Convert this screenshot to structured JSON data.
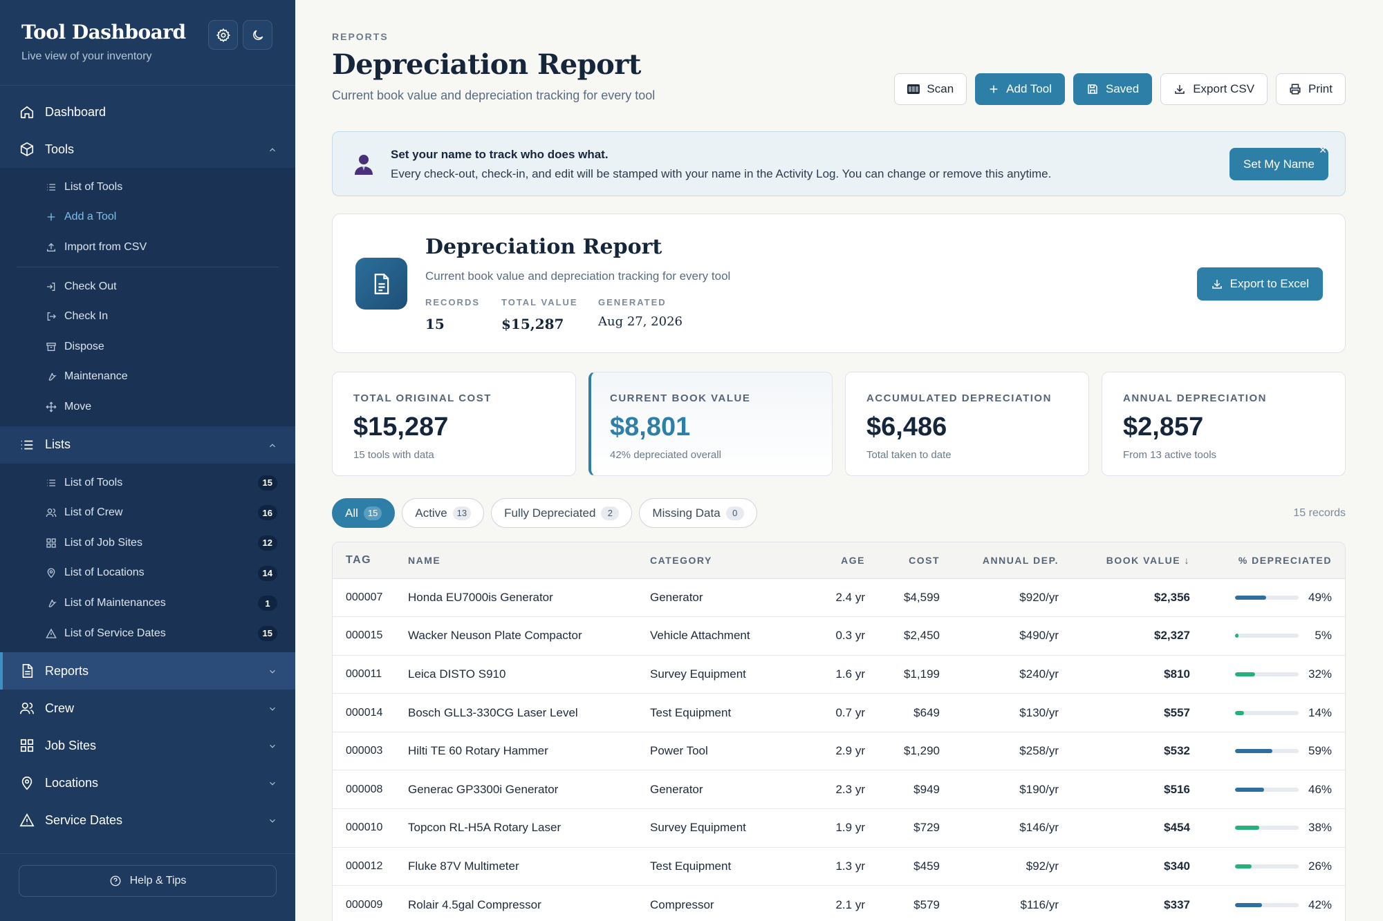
{
  "sidebar": {
    "title": "Tool Dashboard",
    "subtitle": "Live view of your inventory",
    "nav": {
      "dashboard": "Dashboard",
      "tools": "Tools",
      "lists": "Lists",
      "reports": "Reports",
      "crew": "Crew",
      "job_sites": "Job Sites",
      "locations": "Locations",
      "service_dates": "Service Dates"
    },
    "tools_items": [
      {
        "label": "List of Tools",
        "icon": "list-icon"
      },
      {
        "label": "Add a Tool",
        "icon": "plus-icon"
      },
      {
        "label": "Import from CSV",
        "icon": "upload-icon"
      }
    ],
    "tools_actions": [
      {
        "label": "Check Out",
        "icon": "check-out-icon"
      },
      {
        "label": "Check In",
        "icon": "check-in-icon"
      },
      {
        "label": "Dispose",
        "icon": "archive-icon"
      },
      {
        "label": "Maintenance",
        "icon": "wrench-icon"
      },
      {
        "label": "Move",
        "icon": "move-icon"
      }
    ],
    "lists_items": [
      {
        "label": "List of Tools",
        "count": "15",
        "icon": "list-icon"
      },
      {
        "label": "List of Crew",
        "count": "16",
        "icon": "users-icon"
      },
      {
        "label": "List of Job Sites",
        "count": "12",
        "icon": "grid-icon"
      },
      {
        "label": "List of Locations",
        "count": "14",
        "icon": "pin-icon"
      },
      {
        "label": "List of Maintenances",
        "count": "1",
        "icon": "wrench-icon"
      },
      {
        "label": "List of Service Dates",
        "count": "15",
        "icon": "warning-icon"
      }
    ],
    "help": "Help & Tips"
  },
  "header": {
    "breadcrumb": "REPORTS",
    "title": "Depreciation Report",
    "subtitle": "Current book value and depreciation tracking for every tool",
    "toolbar": {
      "scan": "Scan",
      "add_tool": "Add Tool",
      "saved": "Saved",
      "export_csv": "Export CSV",
      "print": "Print"
    }
  },
  "banner": {
    "title": "Set your name to track who does what.",
    "text": "Every check-out, check-in, and edit will be stamped with your name in the Activity Log. You can change or remove this anytime.",
    "button": "Set My Name",
    "close": "✕"
  },
  "report_card": {
    "title": "Depreciation Report",
    "subtitle": "Current book value and depreciation tracking for every tool",
    "records_label": "RECORDS",
    "records_value": "15",
    "total_label": "TOTAL VALUE",
    "total_value": "$15,287",
    "generated_label": "GENERATED",
    "generated_value": "Aug 27, 2026",
    "export_button": "Export to Excel"
  },
  "stats": [
    {
      "label": "TOTAL ORIGINAL COST",
      "value": "$15,287",
      "sub": "15 tools with data"
    },
    {
      "label": "CURRENT BOOK VALUE",
      "value": "$8,801",
      "sub": "42% depreciated overall"
    },
    {
      "label": "ACCUMULATED DEPRECIATION",
      "value": "$6,486",
      "sub": "Total taken to date"
    },
    {
      "label": "ANNUAL DEPRECIATION",
      "value": "$2,857",
      "sub": "From 13 active tools"
    }
  ],
  "filters": [
    {
      "label": "All",
      "count": "15"
    },
    {
      "label": "Active",
      "count": "13"
    },
    {
      "label": "Fully Depreciated",
      "count": "2"
    },
    {
      "label": "Missing Data",
      "count": "0"
    }
  ],
  "record_count": "15 records",
  "table": {
    "columns": [
      "TAG",
      "NAME",
      "CATEGORY",
      "AGE",
      "COST",
      "ANNUAL DEP.",
      "BOOK VALUE ↓",
      "% DEPRECIATED"
    ],
    "rows": [
      {
        "tag": "000007",
        "name": "Honda EU7000is Generator",
        "category": "Generator",
        "age": "2.4 yr",
        "cost": "$4,599",
        "annual": "$920/yr",
        "book": "$2,356",
        "pct": "49%",
        "pct_value": 49
      },
      {
        "tag": "000015",
        "name": "Wacker Neuson Plate Compactor",
        "category": "Vehicle Attachment",
        "age": "0.3 yr",
        "cost": "$2,450",
        "annual": "$490/yr",
        "book": "$2,327",
        "pct": "5%",
        "pct_value": 5
      },
      {
        "tag": "000011",
        "name": "Leica DISTO S910",
        "category": "Survey Equipment",
        "age": "1.6 yr",
        "cost": "$1,199",
        "annual": "$240/yr",
        "book": "$810",
        "pct": "32%",
        "pct_value": 32
      },
      {
        "tag": "000014",
        "name": "Bosch GLL3-330CG Laser Level",
        "category": "Test Equipment",
        "age": "0.7 yr",
        "cost": "$649",
        "annual": "$130/yr",
        "book": "$557",
        "pct": "14%",
        "pct_value": 14
      },
      {
        "tag": "000003",
        "name": "Hilti TE 60 Rotary Hammer",
        "category": "Power Tool",
        "age": "2.9 yr",
        "cost": "$1,290",
        "annual": "$258/yr",
        "book": "$532",
        "pct": "59%",
        "pct_value": 59
      },
      {
        "tag": "000008",
        "name": "Generac GP3300i Generator",
        "category": "Generator",
        "age": "2.3 yr",
        "cost": "$949",
        "annual": "$190/yr",
        "book": "$516",
        "pct": "46%",
        "pct_value": 46
      },
      {
        "tag": "000010",
        "name": "Topcon RL-H5A Rotary Laser",
        "category": "Survey Equipment",
        "age": "1.9 yr",
        "cost": "$729",
        "annual": "$146/yr",
        "book": "$454",
        "pct": "38%",
        "pct_value": 38
      },
      {
        "tag": "000012",
        "name": "Fluke 87V Multimeter",
        "category": "Test Equipment",
        "age": "1.3 yr",
        "cost": "$459",
        "annual": "$92/yr",
        "book": "$340",
        "pct": "26%",
        "pct_value": 26
      },
      {
        "tag": "000009",
        "name": "Rolair 4.5gal Compressor",
        "category": "Compressor",
        "age": "2.1 yr",
        "cost": "$579",
        "annual": "$116/yr",
        "book": "$337",
        "pct": "42%",
        "pct_value": 42
      }
    ]
  },
  "colors": {
    "sidebar": "#1e3a5f",
    "accent": "#2e7fa8",
    "bar_blue": "#2e6f9e",
    "bar_green": "#26b07a"
  }
}
